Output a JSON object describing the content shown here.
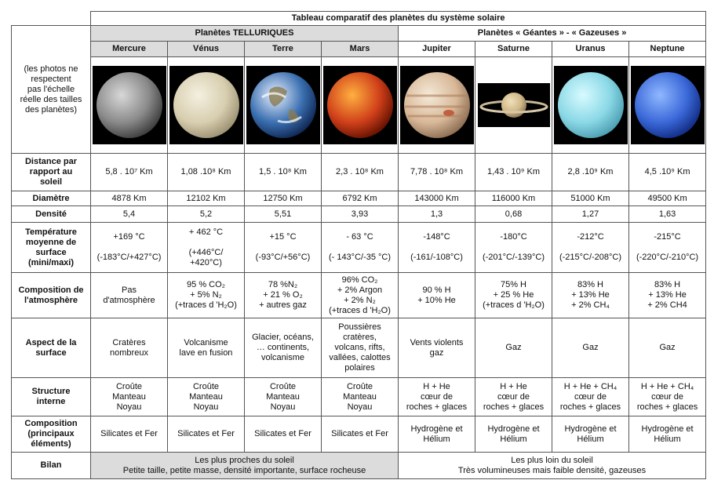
{
  "table": {
    "title": "Tableau comparatif des planètes du système solaire",
    "note": "(les photos ne\nrespectent\npas l'échelle\nréelle des tailles\ndes planètes)",
    "groups": [
      "Planètes TELLURIQUES",
      "Planètes « Géantes » - « Gazeuses »"
    ],
    "planets": [
      "Mercure",
      "Vénus",
      "Terre",
      "Mars",
      "Jupiter",
      "Saturne",
      "Uranus",
      "Neptune"
    ],
    "rows": [
      {
        "label": "Distance par\nrapport au\nsoleil",
        "cells": [
          "5,8 . 10⁷ Km",
          "1,08 .10⁸ Km",
          "1,5 . 10⁸ Km",
          "2,3 . 10⁸ Km",
          "7,78 . 10⁸ Km",
          "1,43 . 10⁹ Km",
          "2,8 .10⁹ Km",
          "4,5 .10⁹ Km"
        ]
      },
      {
        "label": "Diamètre",
        "cells": [
          "4878 Km",
          "12102 Km",
          "12750 Km",
          "6792 Km",
          "143000 Km",
          "116000 Km",
          "51000 Km",
          "49500 Km"
        ]
      },
      {
        "label": "Densité",
        "cells": [
          "5,4",
          "5,2",
          "5,51",
          "3,93",
          "1,3",
          "0,68",
          "1,27",
          "1,63"
        ]
      },
      {
        "label": "Température\nmoyenne de\nsurface\n(mini/maxi)",
        "cells": [
          "+169 °C\n\n(-183°C/+427°C)",
          "+ 462 °C\n\n(+446°C/\n+420°C)",
          "+15 °C\n\n(-93°C/+56°C)",
          "- 63 °C\n\n(- 143°C/-35 °C)",
          "-148°C\n\n(-161/-108°C)",
          "-180°C\n\n(-201°C/-139°C)",
          "-212°C\n\n(-215°C/-208°C)",
          "-215°C\n\n(-220°C/-210°C)"
        ]
      },
      {
        "label": "Composition de\nl'atmosphère",
        "cells": [
          "Pas\nd'atmosphère",
          "95 % CO₂\n+ 5% N₂\n(+traces d 'H₂O)",
          "78 %N₂\n+ 21 % O₂\n+ autres gaz",
          "96% CO₂\n+ 2% Argon\n+ 2% N₂\n(+traces d 'H₂O)",
          "90 % H\n+ 10% He",
          "75% H\n+ 25 % He\n(+traces d 'H₂O)",
          "83% H\n+ 13%  He\n+ 2% CH₄",
          "83% H\n+ 13%  He\n+ 2% CH4"
        ]
      },
      {
        "label": "Aspect de la\nsurface",
        "cells": [
          "Cratères\nnombreux",
          "Volcanisme\nlave en fusion",
          "Glacier, océans,\n… continents,\nvolcanisme",
          "Poussières\ncratères,\nvolcans, rifts,\nvallées, calottes\npolaires",
          "Vents violents\ngaz",
          "Gaz",
          "Gaz",
          "Gaz"
        ]
      },
      {
        "label": "Structure\ninterne",
        "cells": [
          "Croûte\nManteau\nNoyau",
          "Croûte\nManteau\nNoyau",
          "Croûte\nManteau\nNoyau",
          "Croûte\nManteau\nNoyau",
          "H + He\ncœur de\nroches + glaces",
          "H + He\ncœur de\nroches + glaces",
          "H + He + CH₄\ncœur de\nroches + glaces",
          "H + He + CH₄\ncœur de\nroches + glaces"
        ]
      },
      {
        "label": "Composition\n(principaux\néléments)",
        "cells": [
          "Silicates et Fer",
          "Silicates et Fer",
          "Silicates et Fer",
          "Silicates et Fer",
          "Hydrogène et\nHélium",
          "Hydrogène et\nHélium",
          "Hydrogène et\nHélium",
          "Hydrogène et\nHélium"
        ]
      }
    ],
    "bilan": {
      "label": "Bilan",
      "telluric": "Les plus proches du soleil\nPetite taille, petite masse, densité importante, surface rocheuse",
      "giant": "Les plus loin du soleil\nTrès volumineuses mais faible densité, gazeuses"
    }
  }
}
